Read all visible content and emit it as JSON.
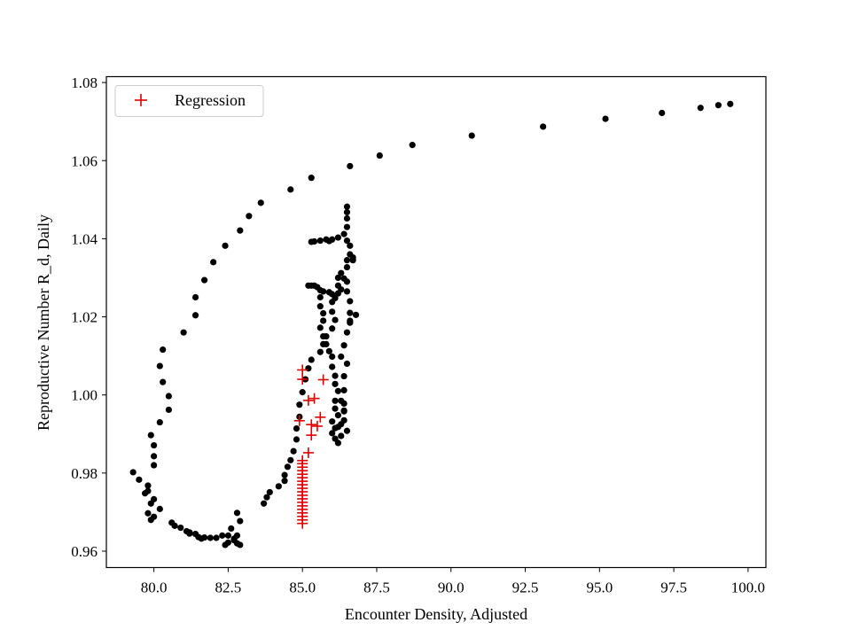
{
  "chart_data": {
    "type": "scatter",
    "title": "",
    "xlabel": "Encounter Density, Adjusted",
    "ylabel": "Reproductive Number R_d, Daily",
    "xlim": [
      78.4,
      100.6
    ],
    "ylim": [
      0.9558,
      1.0815
    ],
    "xticks": [
      80.0,
      82.5,
      85.0,
      87.5,
      90.0,
      92.5,
      95.0,
      97.5,
      100.0
    ],
    "xtick_labels": [
      "80.0",
      "82.5",
      "85.0",
      "87.5",
      "90.0",
      "92.5",
      "95.0",
      "97.5",
      "100.0"
    ],
    "yticks": [
      0.96,
      0.98,
      1.0,
      1.02,
      1.04,
      1.06,
      1.08
    ],
    "ytick_labels": [
      "0.96",
      "0.98",
      "1.00",
      "1.02",
      "1.04",
      "1.06",
      "1.08"
    ],
    "grid": false,
    "legend_position": "top-left",
    "series": [
      {
        "marker": "dot",
        "color": "#000000",
        "points": [
          [
            99.4,
            1.0745
          ],
          [
            99.0,
            1.0742
          ],
          [
            98.4,
            1.0735
          ],
          [
            97.1,
            1.0722
          ],
          [
            95.2,
            1.0707
          ],
          [
            93.1,
            1.0687
          ],
          [
            90.7,
            1.0664
          ],
          [
            88.7,
            1.064
          ],
          [
            87.6,
            1.0613
          ],
          [
            86.6,
            1.0586
          ],
          [
            85.3,
            1.0556
          ],
          [
            84.6,
            1.0526
          ],
          [
            83.6,
            1.0492
          ],
          [
            83.2,
            1.0458
          ],
          [
            82.9,
            1.0421
          ],
          [
            82.4,
            1.0382
          ],
          [
            82.0,
            1.034
          ],
          [
            81.7,
            1.0294
          ],
          [
            81.4,
            1.025
          ],
          [
            81.4,
            1.0204
          ],
          [
            81.0,
            1.016
          ],
          [
            80.3,
            1.0116
          ],
          [
            80.2,
            1.0074
          ],
          [
            80.3,
            1.0033
          ],
          [
            80.5,
            0.9997
          ],
          [
            80.5,
            0.9962
          ],
          [
            80.2,
            0.993
          ],
          [
            79.9,
            0.9897
          ],
          [
            80.0,
            0.9871
          ],
          [
            80.0,
            0.9843
          ],
          [
            80.0,
            0.982
          ],
          [
            79.3,
            0.9802
          ],
          [
            79.5,
            0.9783
          ],
          [
            79.8,
            0.9768
          ],
          [
            79.8,
            0.9754
          ],
          [
            79.7,
            0.9748
          ],
          [
            80.0,
            0.9733
          ],
          [
            79.9,
            0.9722
          ],
          [
            80.2,
            0.9708
          ],
          [
            79.8,
            0.9697
          ],
          [
            80.0,
            0.9688
          ],
          [
            79.9,
            0.968
          ],
          [
            80.6,
            0.9673
          ],
          [
            80.7,
            0.9665
          ],
          [
            80.9,
            0.966
          ],
          [
            81.1,
            0.9651
          ],
          [
            81.2,
            0.9648
          ],
          [
            81.4,
            0.9644
          ],
          [
            81.5,
            0.9636
          ],
          [
            81.7,
            0.9635
          ],
          [
            81.9,
            0.9634
          ],
          [
            82.1,
            0.9634
          ],
          [
            82.3,
            0.964
          ],
          [
            82.5,
            0.964
          ],
          [
            82.8,
            0.964
          ],
          [
            82.6,
            0.9658
          ],
          [
            82.9,
            0.9677
          ],
          [
            82.8,
            0.9698
          ],
          [
            82.7,
            0.9628
          ],
          [
            82.5,
            0.9622
          ],
          [
            82.8,
            0.962
          ],
          [
            82.9,
            0.9616
          ],
          [
            82.7,
            0.9632
          ],
          [
            82.4,
            0.9616
          ],
          [
            81.6,
            0.9632
          ],
          [
            81.2,
            0.9645
          ],
          [
            83.7,
            0.9722
          ],
          [
            83.8,
            0.9738
          ],
          [
            83.9,
            0.9751
          ],
          [
            84.2,
            0.9766
          ],
          [
            84.4,
            0.978
          ],
          [
            84.4,
            0.9795
          ],
          [
            84.5,
            0.9816
          ],
          [
            84.6,
            0.9833
          ],
          [
            84.7,
            0.9856
          ],
          [
            84.8,
            0.9886
          ],
          [
            84.8,
            0.9914
          ],
          [
            84.9,
            0.9944
          ],
          [
            84.9,
            0.9975
          ],
          [
            85.0,
            1.0007
          ],
          [
            85.1,
            1.004
          ],
          [
            85.2,
            1.0068
          ],
          [
            85.3,
            1.009
          ],
          [
            85.6,
            1.011
          ],
          [
            85.7,
            1.013
          ],
          [
            85.7,
            1.015
          ],
          [
            85.6,
            1.0172
          ],
          [
            85.7,
            1.019
          ],
          [
            85.7,
            1.0209
          ],
          [
            85.6,
            1.0227
          ],
          [
            85.6,
            1.025
          ],
          [
            85.2,
            1.028
          ],
          [
            85.3,
            1.028
          ],
          [
            85.4,
            1.028
          ],
          [
            85.5,
            1.0276
          ],
          [
            85.6,
            1.0268
          ],
          [
            85.7,
            1.0265
          ],
          [
            85.9,
            1.0263
          ],
          [
            86.0,
            1.0258
          ],
          [
            86.1,
            1.0248
          ],
          [
            86.2,
            1.026
          ],
          [
            86.3,
            1.027
          ],
          [
            86.2,
            1.028
          ],
          [
            86.2,
            1.03
          ],
          [
            86.3,
            1.0312
          ],
          [
            86.4,
            1.0298
          ],
          [
            86.0,
            1.0238
          ],
          [
            86.0,
            1.0213
          ],
          [
            86.1,
            1.0192
          ],
          [
            86.0,
            1.017
          ],
          [
            85.8,
            1.015
          ],
          [
            85.8,
            1.013
          ],
          [
            85.9,
            1.0112
          ],
          [
            86.0,
            1.0098
          ],
          [
            86.0,
            1.0072
          ],
          [
            86.1,
            1.0049
          ],
          [
            86.1,
            1.0028
          ],
          [
            86.2,
            1.001
          ],
          [
            86.1,
            0.9985
          ],
          [
            86.1,
            0.9965
          ],
          [
            86.2,
            0.9948
          ],
          [
            86.0,
            0.9932
          ],
          [
            86.1,
            0.9915
          ],
          [
            86.0,
            0.9902
          ],
          [
            86.1,
            0.9888
          ],
          [
            86.2,
            0.9877
          ],
          [
            86.3,
            0.9895
          ],
          [
            86.4,
            0.996
          ],
          [
            86.3,
            0.9985
          ],
          [
            86.4,
            1.0012
          ],
          [
            86.4,
            1.0048
          ],
          [
            86.5,
            1.008
          ],
          [
            86.3,
            1.0098
          ],
          [
            86.4,
            1.0127
          ],
          [
            86.5,
            1.016
          ],
          [
            86.6,
            1.0185
          ],
          [
            86.6,
            1.021
          ],
          [
            86.6,
            1.024
          ],
          [
            86.5,
            1.0265
          ],
          [
            86.5,
            1.029
          ],
          [
            86.5,
            1.0327
          ],
          [
            86.5,
            1.0345
          ],
          [
            86.6,
            1.036
          ],
          [
            86.7,
            1.0352
          ],
          [
            86.6,
            1.0382
          ],
          [
            86.5,
            1.0395
          ],
          [
            86.4,
            1.0412
          ],
          [
            86.5,
            1.043
          ],
          [
            86.5,
            1.0452
          ],
          [
            86.5,
            1.0468
          ],
          [
            86.5,
            1.0482
          ],
          [
            86.7,
            1.0345
          ],
          [
            86.8,
            1.0205
          ],
          [
            86.6,
            1.019
          ],
          [
            85.3,
            1.0392
          ],
          [
            85.4,
            1.0393
          ],
          [
            85.6,
            1.0395
          ],
          [
            85.8,
            1.0398
          ],
          [
            85.9,
            1.0394
          ],
          [
            86.0,
            1.0398
          ],
          [
            86.2,
            1.0403
          ],
          [
            86.4,
            0.9978
          ],
          [
            86.4,
            0.9958
          ],
          [
            86.4,
            0.9935
          ],
          [
            86.3,
            0.9925
          ],
          [
            86.5,
            0.9908
          ],
          [
            86.2,
            0.9918
          ]
        ]
      },
      {
        "name": "Regression",
        "marker": "plus",
        "color": "#e00000",
        "points": [
          [
            85.0,
            1.0064
          ],
          [
            85.0,
            1.004
          ],
          [
            85.7,
            1.0039
          ],
          [
            85.4,
            0.9991
          ],
          [
            85.2,
            0.9986
          ],
          [
            85.6,
            0.9943
          ],
          [
            84.9,
            0.9934
          ],
          [
            85.3,
            0.9924
          ],
          [
            85.5,
            0.992
          ],
          [
            85.3,
            0.9897
          ],
          [
            85.2,
            0.9852
          ],
          [
            85.0,
            0.9832
          ],
          [
            85.0,
            0.9824
          ],
          [
            85.0,
            0.9815
          ],
          [
            85.0,
            0.9806
          ],
          [
            85.0,
            0.9797
          ],
          [
            85.0,
            0.9788
          ],
          [
            85.0,
            0.9779
          ],
          [
            85.0,
            0.977
          ],
          [
            85.0,
            0.9761
          ],
          [
            85.0,
            0.9752
          ],
          [
            85.0,
            0.9743
          ],
          [
            85.0,
            0.9734
          ],
          [
            85.0,
            0.9725
          ],
          [
            85.0,
            0.9716
          ],
          [
            85.0,
            0.9707
          ],
          [
            85.0,
            0.9698
          ],
          [
            85.0,
            0.9689
          ],
          [
            85.0,
            0.968
          ],
          [
            85.0,
            0.9671
          ]
        ]
      }
    ]
  }
}
